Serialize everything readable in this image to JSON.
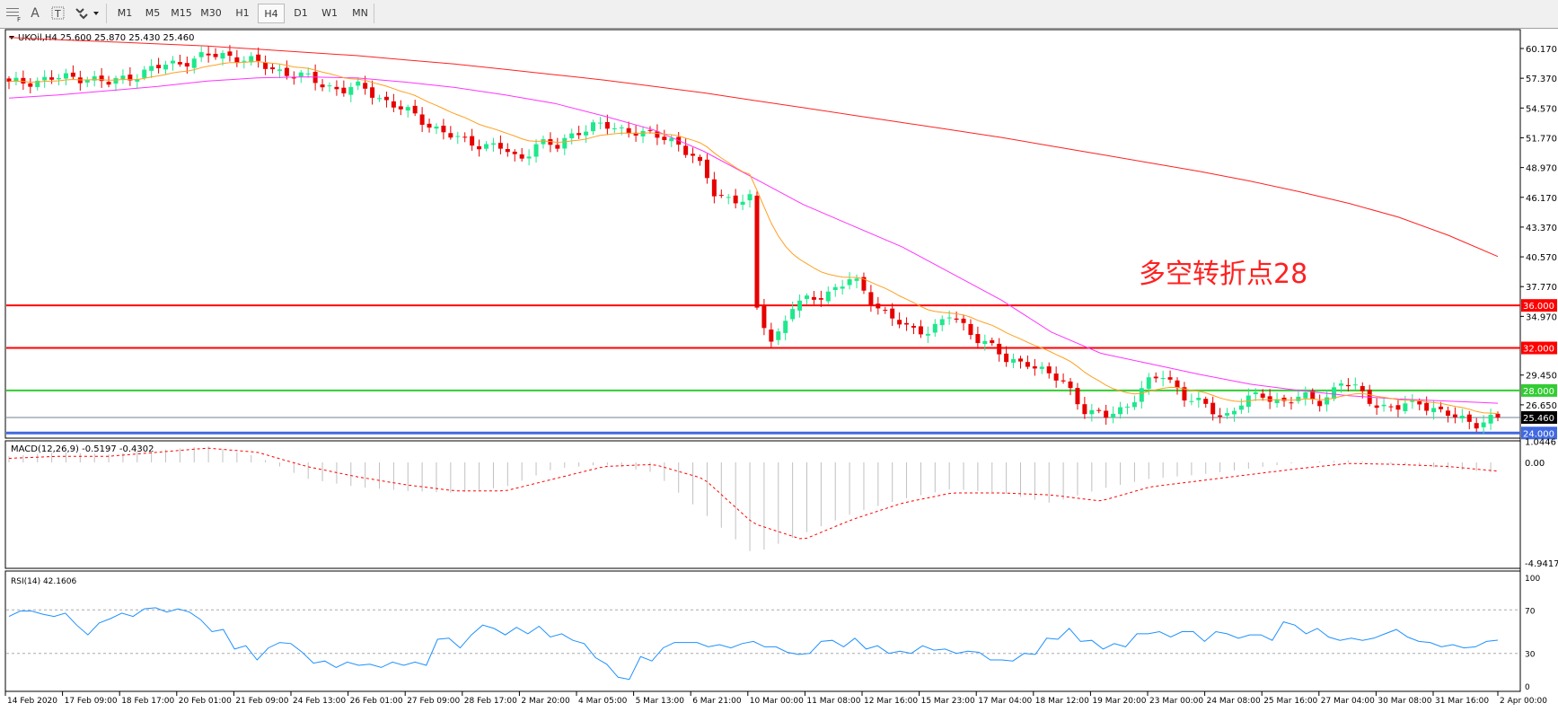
{
  "toolbar": {
    "icons": [
      "grid-icon",
      "text-icon",
      "text-label-icon",
      "arrows-icon"
    ],
    "timeframes": [
      "M1",
      "M5",
      "M15",
      "M30",
      "H1",
      "H4",
      "D1",
      "W1",
      "MN"
    ],
    "selected_timeframe": "H4"
  },
  "chart": {
    "header": "UKOil,H4  25.600 25.870 25.430 25.460",
    "annotation": "多空转折点28",
    "price_ticks": [
      "60.170",
      "57.370",
      "54.570",
      "51.770",
      "48.970",
      "46.170",
      "43.370",
      "40.570",
      "37.770",
      "34.970",
      "29.450",
      "26.650"
    ],
    "levels": [
      {
        "label": "36.000",
        "value": 36.0,
        "color": "#ff0000"
      },
      {
        "label": "32.000",
        "value": 32.0,
        "color": "#ff0000"
      },
      {
        "label": "28.000",
        "value": 28.0,
        "color": "#33cc33"
      },
      {
        "label": "25.460",
        "value": 25.46,
        "color": "#000000"
      },
      {
        "label": "24.000",
        "value": 24.0,
        "color": "#4169e1"
      }
    ],
    "time_labels": [
      "14 Feb 2020",
      "17 Feb 09:00",
      "18 Feb 17:00",
      "20 Feb 01:00",
      "21 Feb 09:00",
      "24 Feb 13:00",
      "26 Feb 01:00",
      "27 Feb 09:00",
      "28 Feb 17:00",
      "2 Mar 20:00",
      "4 Mar 05:00",
      "5 Mar 13:00",
      "6 Mar 21:00",
      "10 Mar 00:00",
      "11 Mar 08:00",
      "12 Mar 16:00",
      "15 Mar 23:00",
      "17 Mar 04:00",
      "18 Mar 12:00",
      "19 Mar 20:00",
      "23 Mar 00:00",
      "24 Mar 08:00",
      "25 Mar 16:00",
      "27 Mar 04:00",
      "30 Mar 08:00",
      "31 Mar 16:00",
      "2 Apr 00:00"
    ]
  },
  "macd": {
    "header": "MACD(12,26,9) -0.5197 -0.4302",
    "ticks": [
      "1.0446",
      "0.00",
      "-4.9417"
    ]
  },
  "rsi": {
    "header": "RSI(14) 42.1606",
    "ticks": [
      "100",
      "70",
      "30",
      "0"
    ]
  },
  "colors": {
    "bull": "#1ee88c",
    "bear": "#e60000",
    "ma_slow": "#ff2020",
    "ma_mid": "#ff33ff",
    "ma_fast": "#ffa020",
    "rsi": "#1e90ff",
    "macd_hist": "#c0c0c0",
    "macd_signal": "#ff0000"
  },
  "chart_data": {
    "type": "candlestick",
    "symbol": "UKOil",
    "timeframe": "H4",
    "price_range": [
      24.0,
      60.17
    ],
    "close": [
      56.8,
      57.1,
      57.3,
      57.4,
      57.5,
      56.8,
      57.5,
      58.0,
      58.6,
      59.0,
      59.4,
      59.6,
      59.2,
      58.5,
      58.0,
      57.5,
      56.8,
      56.3,
      56.5,
      55.5,
      54.5,
      53.5,
      52.5,
      51.5,
      51.2,
      51.0,
      49.5,
      51.5,
      50.8,
      52.5,
      53.0,
      52.5,
      52.5,
      51.8,
      51.5,
      50.0,
      46.5,
      46.0,
      36.0,
      32.5,
      36.0,
      36.5,
      37.5,
      38.5,
      36.5,
      35.0,
      33.5,
      33.8,
      35.0,
      33.5,
      32.5,
      30.5,
      30.8,
      29.5,
      28.5,
      26.0,
      25.5,
      26.5,
      28.5,
      29.5,
      27.5,
      26.5,
      25.5,
      27.0,
      27.5,
      27.0,
      27.3,
      27.0,
      28.8,
      27.8,
      26.5,
      26.3,
      27.0,
      26.0,
      25.3,
      25.0,
      25.46
    ],
    "ma_slow": [
      61.2,
      61.0,
      60.8,
      60.6,
      60.4,
      60.1,
      59.8,
      59.5,
      59.1,
      58.7,
      58.2,
      57.7,
      57.2,
      56.6,
      56.0,
      55.3,
      54.6,
      53.9,
      53.2,
      52.5,
      51.8,
      51.0,
      50.2,
      49.4,
      48.6,
      47.7,
      46.7,
      45.6,
      44.3,
      42.6,
      40.6
    ],
    "ma_mid": [
      55.5,
      55.8,
      56.2,
      56.6,
      57.1,
      57.4,
      57.5,
      57.4,
      57.0,
      56.5,
      55.8,
      55.0,
      53.8,
      52.5,
      50.5,
      48.0,
      45.5,
      43.5,
      41.5,
      39.0,
      36.5,
      33.5,
      31.5,
      30.5,
      29.5,
      28.6,
      28.0,
      27.5,
      27.2,
      27.0,
      26.8
    ],
    "macd_range": [
      -4.9417,
      1.0446
    ],
    "macd_hist": [
      0.3,
      0.5,
      0.4,
      0.6,
      0.8,
      0.3,
      -0.8,
      -1.2,
      -1.4,
      -1.5,
      -1.2,
      -0.3,
      -0.1,
      -0.5,
      -2.5,
      -4.5,
      -3.5,
      -2.5,
      -1.8,
      -1.3,
      -1.5,
      -2.0,
      -1.3,
      -0.8,
      -0.6,
      -0.3,
      0.0,
      0.1,
      -0.1,
      -0.3,
      -0.52
    ],
    "macd_signal": [
      0.2,
      0.3,
      0.3,
      0.5,
      0.7,
      0.5,
      -0.2,
      -0.7,
      -1.1,
      -1.4,
      -1.4,
      -0.8,
      -0.2,
      -0.1,
      -0.8,
      -3.0,
      -3.8,
      -2.8,
      -2.0,
      -1.5,
      -1.5,
      -1.6,
      -1.9,
      -1.2,
      -0.9,
      -0.6,
      -0.3,
      -0.05,
      -0.1,
      -0.2,
      -0.43
    ],
    "rsi_levels": [
      70,
      30
    ],
    "rsi": [
      64,
      69,
      69,
      66,
      64,
      67,
      56,
      47,
      58,
      62,
      67,
      64,
      71,
      72,
      68,
      71,
      68,
      61,
      50,
      52,
      34,
      37,
      24,
      35,
      40,
      39,
      31,
      21,
      23,
      17,
      22,
      19,
      20,
      17,
      22,
      19,
      22,
      19,
      43,
      44,
      35,
      47,
      56,
      53,
      47,
      54,
      48,
      55,
      45,
      48,
      42,
      39,
      26,
      20,
      8,
      6,
      27,
      23,
      35,
      40,
      40,
      40,
      36,
      38,
      35,
      39,
      41,
      36,
      36,
      31,
      29,
      30,
      41,
      42,
      36,
      44,
      34,
      37,
      30,
      32,
      30,
      37,
      33,
      34,
      30,
      32,
      31,
      24,
      24,
      23,
      30,
      29,
      44,
      43,
      53,
      41,
      42,
      34,
      39,
      36,
      48,
      48,
      50,
      45,
      50,
      50,
      41,
      50,
      48,
      44,
      47,
      47,
      42,
      59,
      56,
      48,
      53,
      45,
      42,
      44,
      42,
      44,
      48,
      52,
      45,
      41,
      40,
      36,
      38,
      35,
      36,
      41,
      42.16
    ]
  }
}
